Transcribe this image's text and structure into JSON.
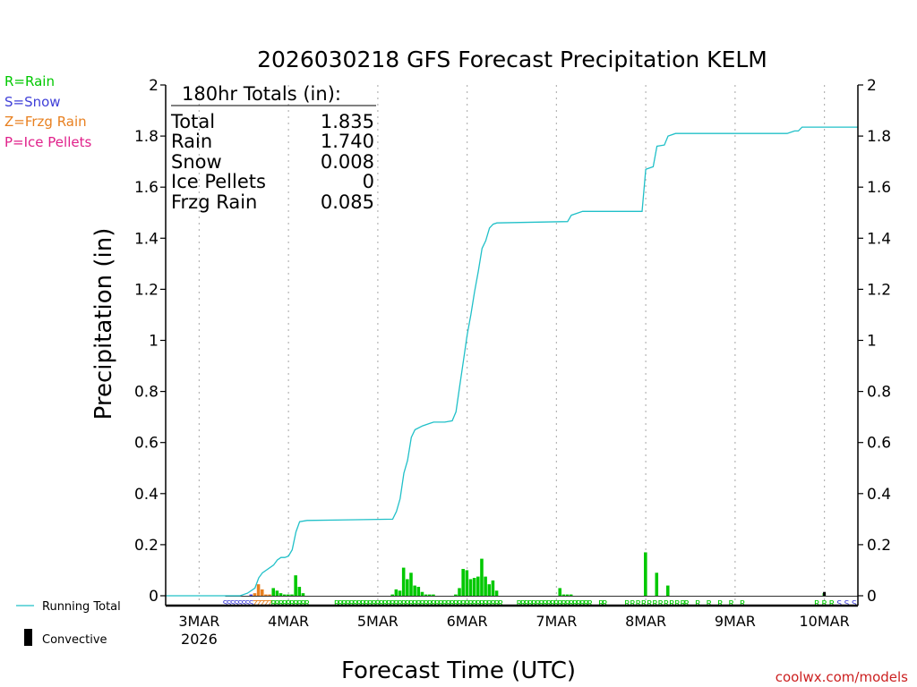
{
  "chart_data": {
    "type": "bar",
    "title": "2026030218 GFS Forecast Precipitation KELM",
    "ylabel": "Precipitation (in)",
    "xlabel": "Forecast Time (UTC)",
    "ylim": [
      0,
      2
    ],
    "xlim_hours": [
      -3,
      183
    ],
    "y_ticks": [
      "0",
      "0.2",
      "0.4",
      "0.6",
      "0.8",
      "1",
      "1.2",
      "1.4",
      "1.6",
      "1.8",
      "2"
    ],
    "x_ticks": [
      {
        "label": "3MAR",
        "sub": "2026",
        "hour": 6
      },
      {
        "label": "4MAR",
        "sub": "",
        "hour": 30
      },
      {
        "label": "5MAR",
        "sub": "",
        "hour": 54
      },
      {
        "label": "6MAR",
        "sub": "",
        "hour": 78
      },
      {
        "label": "7MAR",
        "sub": "",
        "hour": 102
      },
      {
        "label": "8MAR",
        "sub": "",
        "hour": 126
      },
      {
        "label": "9MAR",
        "sub": "",
        "hour": 150
      },
      {
        "label": "10MAR",
        "sub": "",
        "hour": 174
      }
    ],
    "precip_type_legend": [
      {
        "text": "R=Rain",
        "color": "#00c800"
      },
      {
        "text": "S=Snow",
        "color": "#4040d8"
      },
      {
        "text": "Z=Frzg Rain",
        "color": "#e88020"
      },
      {
        "text": "P=Ice Pellets",
        "color": "#e0208a"
      }
    ],
    "series_legend": [
      {
        "text": "Running Total",
        "color": "#20c0c8"
      },
      {
        "text": "Convective",
        "color": "#000000"
      }
    ],
    "totals_box": {
      "heading": "180hr Totals (in):",
      "rows": [
        {
          "label": "Total",
          "value": "1.835"
        },
        {
          "label": "Rain",
          "value": "1.740"
        },
        {
          "label": "Snow",
          "value": "0.008"
        },
        {
          "label": "Ice Pellets",
          "value": "0"
        },
        {
          "label": "Frzg Rain",
          "value": "0.085"
        }
      ]
    },
    "bars": [
      {
        "hour": 20,
        "value": 0.005,
        "type": "S"
      },
      {
        "hour": 21,
        "value": 0.01,
        "type": "Z"
      },
      {
        "hour": 22,
        "value": 0.045,
        "type": "Z"
      },
      {
        "hour": 23,
        "value": 0.025,
        "type": "Z"
      },
      {
        "hour": 24,
        "value": 0.005,
        "type": "Z"
      },
      {
        "hour": 25,
        "value": 0.005,
        "type": "Z"
      },
      {
        "hour": 26,
        "value": 0.03,
        "type": "R"
      },
      {
        "hour": 27,
        "value": 0.02,
        "type": "R"
      },
      {
        "hour": 28,
        "value": 0.01,
        "type": "R"
      },
      {
        "hour": 29,
        "value": 0.005,
        "type": "R"
      },
      {
        "hour": 30,
        "value": 0.005,
        "type": "R"
      },
      {
        "hour": 31,
        "value": 0.005,
        "type": "R"
      },
      {
        "hour": 32,
        "value": 0.08,
        "type": "R"
      },
      {
        "hour": 33,
        "value": 0.035,
        "type": "R"
      },
      {
        "hour": 34,
        "value": 0.01,
        "type": "R"
      },
      {
        "hour": 58,
        "value": 0.005,
        "type": "R"
      },
      {
        "hour": 59,
        "value": 0.025,
        "type": "R"
      },
      {
        "hour": 60,
        "value": 0.02,
        "type": "R"
      },
      {
        "hour": 61,
        "value": 0.11,
        "type": "R"
      },
      {
        "hour": 62,
        "value": 0.065,
        "type": "R"
      },
      {
        "hour": 63,
        "value": 0.09,
        "type": "R"
      },
      {
        "hour": 64,
        "value": 0.04,
        "type": "R"
      },
      {
        "hour": 65,
        "value": 0.035,
        "type": "R"
      },
      {
        "hour": 66,
        "value": 0.015,
        "type": "R"
      },
      {
        "hour": 67,
        "value": 0.005,
        "type": "R"
      },
      {
        "hour": 68,
        "value": 0.005,
        "type": "R"
      },
      {
        "hour": 69,
        "value": 0.005,
        "type": "R"
      },
      {
        "hour": 75,
        "value": 0.005,
        "type": "R"
      },
      {
        "hour": 76,
        "value": 0.03,
        "type": "R"
      },
      {
        "hour": 77,
        "value": 0.105,
        "type": "R"
      },
      {
        "hour": 78,
        "value": 0.1,
        "type": "R"
      },
      {
        "hour": 79,
        "value": 0.065,
        "type": "R"
      },
      {
        "hour": 80,
        "value": 0.07,
        "type": "R"
      },
      {
        "hour": 81,
        "value": 0.075,
        "type": "R"
      },
      {
        "hour": 82,
        "value": 0.145,
        "type": "R"
      },
      {
        "hour": 83,
        "value": 0.075,
        "type": "R"
      },
      {
        "hour": 84,
        "value": 0.045,
        "type": "R"
      },
      {
        "hour": 85,
        "value": 0.06,
        "type": "R"
      },
      {
        "hour": 86,
        "value": 0.02,
        "type": "R"
      },
      {
        "hour": 103,
        "value": 0.03,
        "type": "R"
      },
      {
        "hour": 104,
        "value": 0.005,
        "type": "R"
      },
      {
        "hour": 105,
        "value": 0.005,
        "type": "R"
      },
      {
        "hour": 106,
        "value": 0.005,
        "type": "R"
      },
      {
        "hour": 126,
        "value": 0.17,
        "type": "R"
      },
      {
        "hour": 129,
        "value": 0.09,
        "type": "R"
      },
      {
        "hour": 132,
        "value": 0.04,
        "type": "R"
      },
      {
        "hour": 174,
        "value": 0.01,
        "type": "R"
      }
    ],
    "convective": [
      {
        "hour": 174,
        "value": 0.015
      }
    ],
    "running_total": {
      "hours": [
        -3,
        17,
        19,
        21,
        22,
        23,
        24,
        26,
        27,
        28,
        29,
        30,
        31,
        32,
        33,
        35,
        58,
        59,
        60,
        61,
        62,
        63,
        64,
        66,
        68,
        69,
        72,
        74,
        75,
        76,
        77,
        78,
        79,
        80,
        81,
        82,
        83,
        84,
        85,
        86,
        105,
        106,
        108,
        109,
        125,
        126,
        128,
        129,
        131,
        132,
        134,
        164,
        166,
        167,
        168,
        183
      ],
      "values": [
        0,
        0,
        0.01,
        0.03,
        0.07,
        0.09,
        0.1,
        0.12,
        0.14,
        0.15,
        0.15,
        0.155,
        0.18,
        0.25,
        0.29,
        0.295,
        0.3,
        0.33,
        0.38,
        0.48,
        0.53,
        0.62,
        0.65,
        0.665,
        0.675,
        0.68,
        0.68,
        0.685,
        0.72,
        0.82,
        0.92,
        1.02,
        1.1,
        1.19,
        1.27,
        1.36,
        1.39,
        1.44,
        1.455,
        1.46,
        1.465,
        1.49,
        1.5,
        1.505,
        1.505,
        1.67,
        1.68,
        1.76,
        1.765,
        1.8,
        1.81,
        1.81,
        1.82,
        1.82,
        1.835,
        1.835
      ]
    },
    "type_markers": [
      {
        "start": 13,
        "end": 20,
        "type": "S"
      },
      {
        "start": 21,
        "end": 25,
        "type": "Z"
      },
      {
        "start": 26,
        "end": 35,
        "type": "R"
      },
      {
        "start": 43,
        "end": 87,
        "type": "R"
      },
      {
        "start": 92,
        "end": 111,
        "type": "R"
      },
      {
        "start": 114,
        "end": 115,
        "type": "R"
      },
      {
        "start": 121,
        "end": 136,
        "type": "R",
        "step": 1.5
      },
      {
        "start": 137,
        "end": 152,
        "type": "R",
        "step": 3
      },
      {
        "start": 172,
        "end": 176,
        "type": "R",
        "step": 2
      },
      {
        "start": 178,
        "end": 182,
        "type": "S",
        "step": 2
      }
    ],
    "credit": "coolwx.com/models"
  }
}
